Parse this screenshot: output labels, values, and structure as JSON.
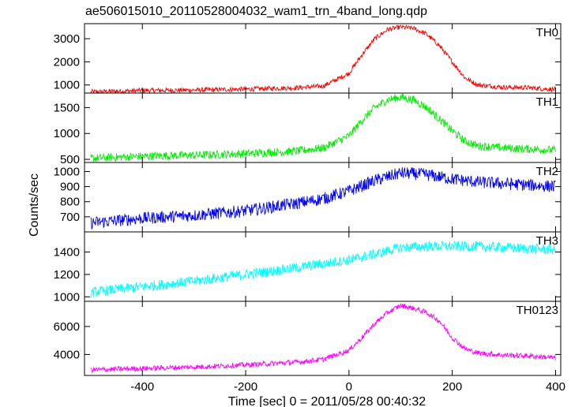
{
  "title": "ae506015010_20110528004032_wam1_trn_4band_long.qdp",
  "xlabel": "Time [sec] 0 = 2011/05/28 00:40:32",
  "ylabel": "Counts/sec",
  "chart_data": [
    {
      "type": "line",
      "panel": "TH0",
      "color": "#ff0000",
      "xlim": [
        -512,
        410
      ],
      "ylim": [
        650,
        3650
      ],
      "y_ticks": [
        1000,
        2000,
        3000
      ],
      "x": [
        -500,
        -400,
        -300,
        -200,
        -100,
        -50,
        0,
        25,
        50,
        75,
        100,
        125,
        150,
        175,
        200,
        225,
        250,
        300,
        350,
        400
      ],
      "y": [
        700,
        760,
        780,
        820,
        880,
        950,
        1500,
        2300,
        3000,
        3400,
        3500,
        3450,
        3200,
        2700,
        2000,
        1300,
        1000,
        900,
        880,
        800
      ]
    },
    {
      "type": "line",
      "panel": "TH1",
      "color": "#00ee00",
      "xlim": [
        -512,
        410
      ],
      "ylim": [
        440,
        1780
      ],
      "y_ticks": [
        500,
        1000,
        1500
      ],
      "x": [
        -500,
        -400,
        -300,
        -200,
        -100,
        -50,
        0,
        25,
        50,
        75,
        100,
        125,
        150,
        175,
        200,
        225,
        250,
        300,
        350,
        400
      ],
      "y": [
        520,
        560,
        580,
        610,
        660,
        720,
        950,
        1250,
        1500,
        1650,
        1700,
        1650,
        1500,
        1280,
        1050,
        850,
        760,
        720,
        700,
        680
      ]
    },
    {
      "type": "line",
      "panel": "TH2",
      "color": "#0000ff",
      "xlim": [
        -512,
        410
      ],
      "ylim": [
        600,
        1060
      ],
      "y_ticks": [
        700,
        800,
        900,
        1000
      ],
      "x": [
        -500,
        -400,
        -300,
        -200,
        -100,
        -50,
        0,
        50,
        100,
        150,
        200,
        250,
        300,
        350,
        400
      ],
      "y": [
        660,
        690,
        710,
        740,
        790,
        820,
        870,
        940,
        990,
        980,
        950,
        930,
        920,
        910,
        900
      ]
    },
    {
      "type": "line",
      "panel": "TH3",
      "color": "#00ffff",
      "xlim": [
        -512,
        410
      ],
      "ylim": [
        960,
        1580
      ],
      "y_ticks": [
        1000,
        1200,
        1400
      ],
      "x": [
        -500,
        -400,
        -300,
        -200,
        -100,
        0,
        50,
        100,
        150,
        200,
        250,
        300,
        350,
        400
      ],
      "y": [
        1040,
        1090,
        1140,
        1200,
        1260,
        1330,
        1380,
        1440,
        1450,
        1450,
        1450,
        1440,
        1430,
        1420
      ]
    },
    {
      "type": "line",
      "panel": "TH0123",
      "color": "#ff00ff",
      "xlim": [
        -512,
        410
      ],
      "ylim": [
        2500,
        7800
      ],
      "y_ticks": [
        4000,
        6000
      ],
      "x": [
        -500,
        -400,
        -300,
        -200,
        -100,
        -50,
        0,
        25,
        50,
        75,
        100,
        125,
        150,
        175,
        200,
        225,
        250,
        300,
        350,
        400
      ],
      "y": [
        2900,
        3000,
        3100,
        3250,
        3450,
        3650,
        4300,
        5200,
        6200,
        7000,
        7500,
        7300,
        7000,
        6400,
        5200,
        4400,
        4100,
        3950,
        3900,
        3750
      ]
    }
  ],
  "x_ticks": [
    -400,
    -200,
    0,
    200,
    400
  ]
}
